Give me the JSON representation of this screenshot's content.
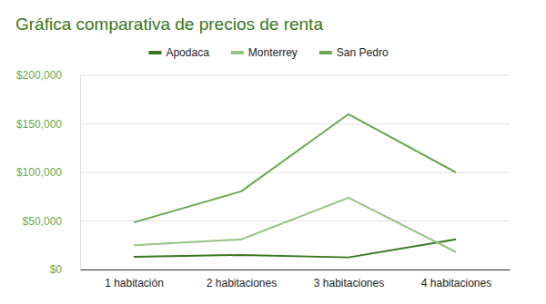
{
  "chart_data": {
    "type": "line",
    "title": "Gráfica comparativa de precios de renta",
    "categories": [
      "1 habitación",
      "2 habitaciones",
      "3 habitaciones",
      "4 habitaciones"
    ],
    "series": [
      {
        "name": "Apodaca",
        "color": "#38761d",
        "values": [
          13000,
          15000,
          12500,
          31000
        ]
      },
      {
        "name": "Monterrey",
        "color": "#93c47d",
        "values": [
          25000,
          31000,
          74000,
          18000
        ]
      },
      {
        "name": "San Pedro",
        "color": "#6aa84f",
        "values": [
          48500,
          80500,
          160000,
          100000
        ]
      }
    ],
    "ylim": [
      0,
      200000
    ],
    "yticks": [
      {
        "value": 0,
        "label": "$0"
      },
      {
        "value": 50000,
        "label": "$50,000"
      },
      {
        "value": 100000,
        "label": "$100,000"
      },
      {
        "value": 150000,
        "label": "$150,000"
      },
      {
        "value": 200000,
        "label": "$200,000"
      }
    ],
    "grid": true,
    "legend": "top"
  }
}
